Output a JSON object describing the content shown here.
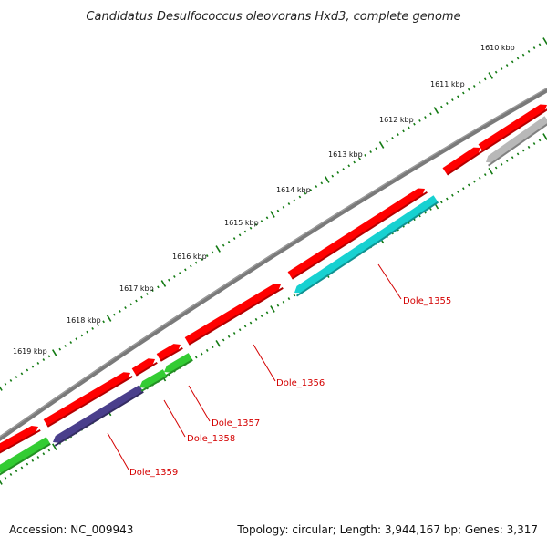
{
  "title": "Candidatus Desulfococcus oleovorans Hxd3, complete genome",
  "kbp_labels": [
    "1610 kbp",
    "1611 kbp",
    "1612 kbp",
    "1613 kbp",
    "1614 kbp",
    "1615 kbp",
    "1616 kbp",
    "1617 kbp",
    "1618 kbp",
    "1619 kbp"
  ],
  "gene_labels": [
    "Dole_1355",
    "Dole_1356",
    "Dole_1357",
    "Dole_1358",
    "Dole_1359"
  ],
  "footer": {
    "accession": "Accession: NC_009943",
    "stats": "Topology: circular; Length: 3,944,167 bp; Genes: 3,317"
  },
  "colors": {
    "backbone": "#7a7a7a",
    "tick": "#137a13",
    "forward_gene": "#ff0000",
    "reverse_green": "#33cc33",
    "reverse_cyan": "#17d1d1",
    "reverse_purple": "#4a3f8c",
    "reverse_gray": "#b8b8b8",
    "label": "#d40000"
  }
}
